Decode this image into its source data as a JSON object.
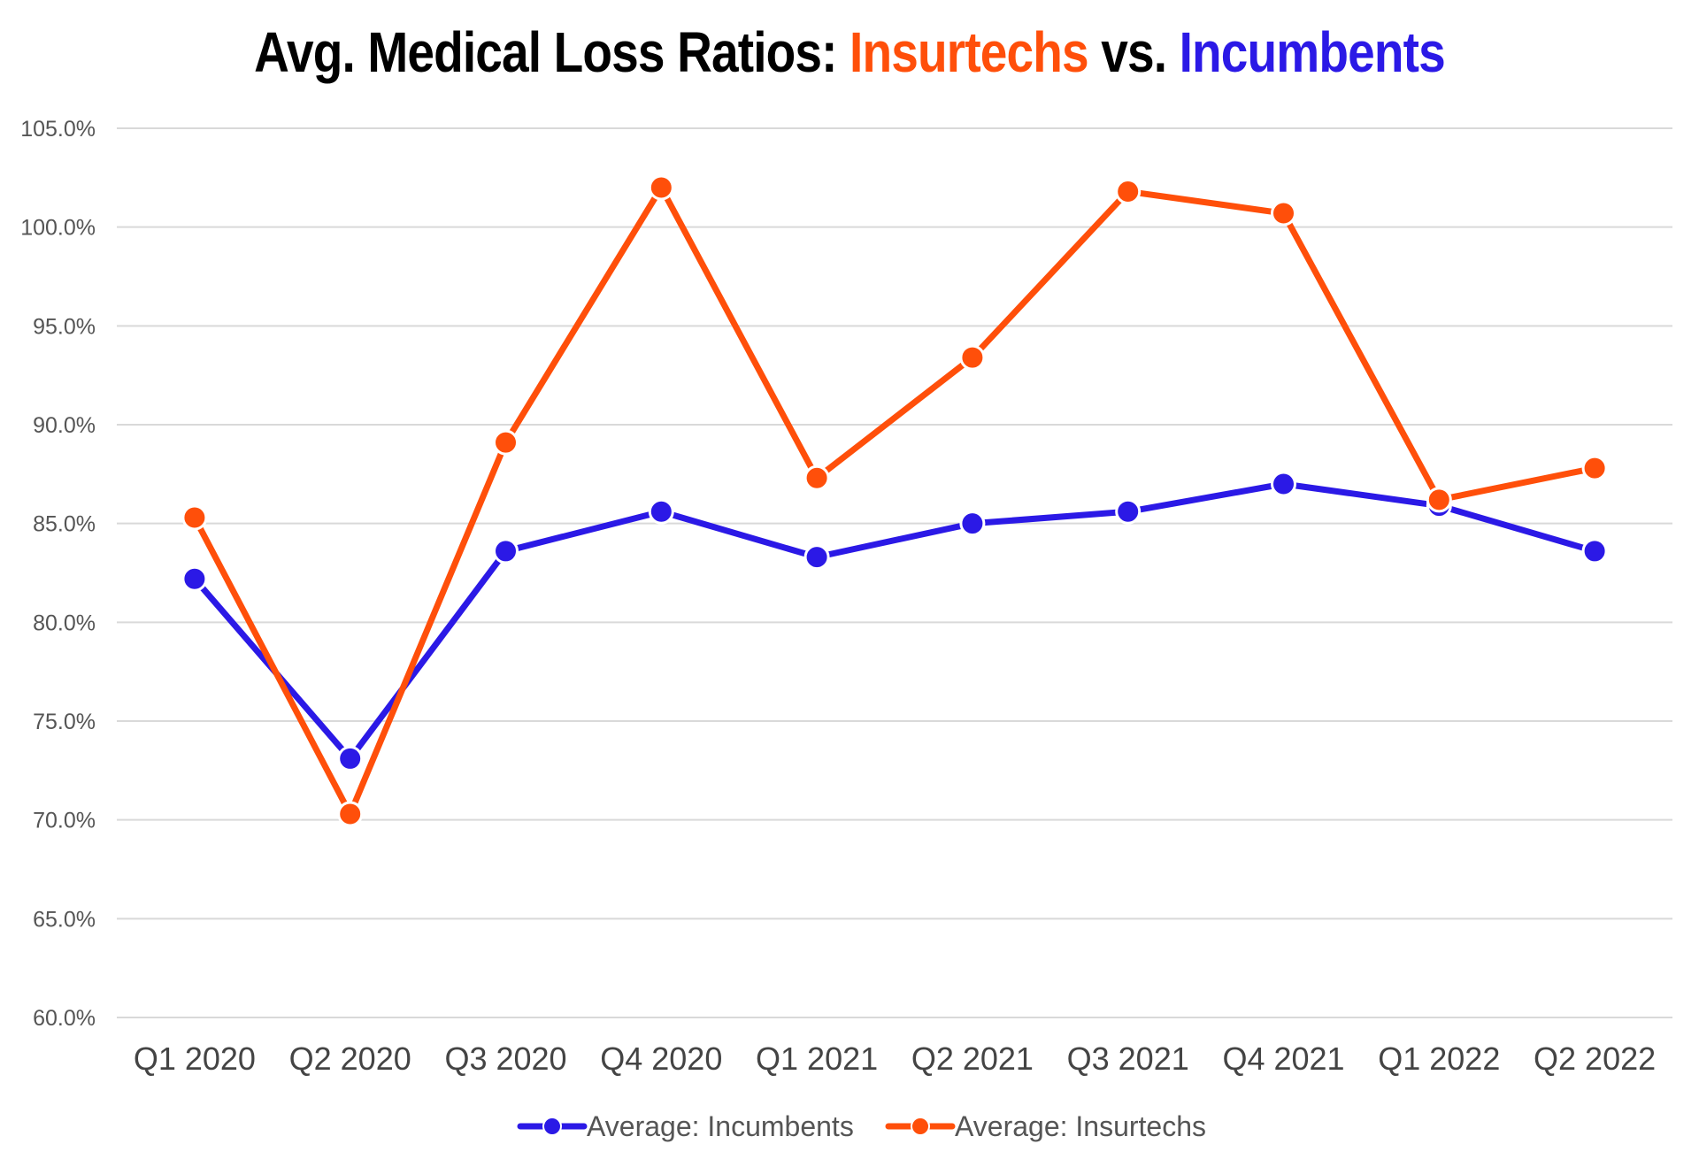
{
  "title": {
    "prefix": "Avg. Medical Loss Ratios: ",
    "part_a": "Insurtechs",
    "middle": " vs. ",
    "part_b": "Incumbents"
  },
  "colors": {
    "incumbents": "#2b19e6",
    "insurtechs": "#ff4f0a",
    "grid": "#d9d9d9",
    "title": "#000000"
  },
  "chart_data": {
    "type": "line",
    "title": "Avg. Medical Loss Ratios: Insurtechs vs. Incumbents",
    "categories": [
      "Q1 2020",
      "Q2 2020",
      "Q3 2020",
      "Q4 2020",
      "Q1 2021",
      "Q2 2021",
      "Q3 2021",
      "Q4 2021",
      "Q1 2022",
      "Q2 2022"
    ],
    "series": [
      {
        "name": "Average: Incumbents",
        "color": "#2b19e6",
        "values": [
          82.2,
          73.1,
          83.6,
          85.6,
          83.3,
          85.0,
          85.6,
          87.0,
          85.9,
          83.6
        ]
      },
      {
        "name": "Average: Insurtechs",
        "color": "#ff4f0a",
        "values": [
          85.3,
          70.3,
          89.1,
          102.0,
          87.3,
          93.4,
          101.8,
          100.7,
          86.2,
          87.8
        ]
      }
    ],
    "yticks": [
      "60.0%",
      "65.0%",
      "70.0%",
      "75.0%",
      "80.0%",
      "85.0%",
      "90.0%",
      "95.0%",
      "100.0%",
      "105.0%"
    ],
    "ylim": [
      60,
      105
    ],
    "grid": true,
    "legend_position": "bottom"
  }
}
